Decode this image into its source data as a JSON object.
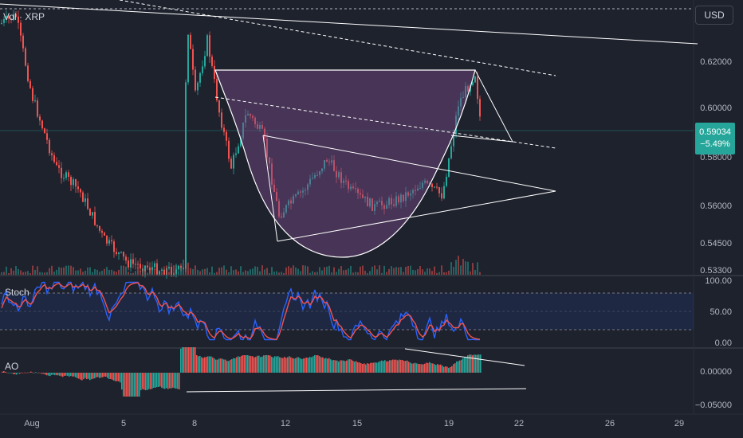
{
  "chart_label": "Vol · XRP",
  "currency": "USD",
  "price_axis": [
    "0.62000",
    "0.60000",
    "0.58000",
    "0.56000",
    "0.54500",
    "0.53300"
  ],
  "current_price": "0.59034",
  "change_pct": "−5.49%",
  "stoch": {
    "label": "Stoch",
    "ticks": [
      "100.00",
      "50.00",
      "0.00"
    ]
  },
  "ao": {
    "label": "AO",
    "ticks": [
      "0.00000",
      "−0.05000"
    ]
  },
  "x_axis": [
    "Aug",
    "5",
    "8",
    "12",
    "15",
    "19",
    "22",
    "26",
    "29"
  ],
  "colors": {
    "up": "#26a69a",
    "down": "#ef5350",
    "background": "#1e222d",
    "pattern_fill": "#7b4c8a",
    "stoch_k": "#2962ff",
    "stoch_d": "#ef5350"
  }
}
